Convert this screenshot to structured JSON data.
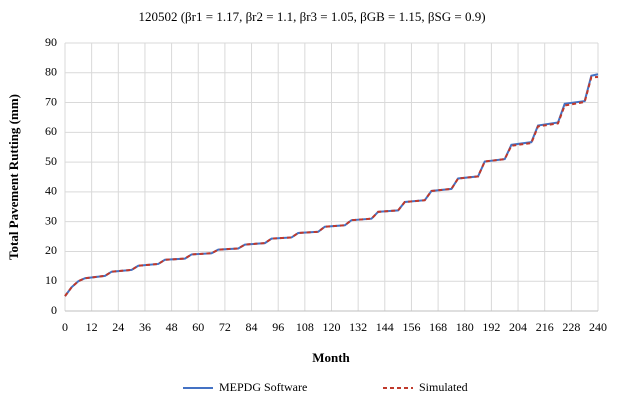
{
  "chart_data": {
    "type": "line",
    "title": "120502 (βr1 = 1.17, βr2 = 1.1, βr3 = 1.05, βGB = 1.15, βSG = 0.9)",
    "x_label": "Month",
    "y_label": "Total Pavement Rutting (mm)",
    "x": [
      0,
      3,
      6,
      9,
      18,
      21,
      30,
      33,
      42,
      45,
      54,
      57,
      66,
      69,
      78,
      81,
      90,
      93,
      102,
      105,
      114,
      117,
      126,
      129,
      138,
      141,
      150,
      153,
      162,
      165,
      174,
      177,
      186,
      189,
      198,
      201,
      210,
      213,
      222,
      225,
      234,
      237,
      240
    ],
    "series": [
      {
        "name": "MEPDG Software",
        "color": "#4472c4",
        "dash": false,
        "values": [
          5,
          8,
          10,
          11,
          11.8,
          13.2,
          13.8,
          15.2,
          15.8,
          17.2,
          17.6,
          19,
          19.4,
          20.6,
          21,
          22.3,
          22.8,
          24.3,
          24.7,
          26.2,
          26.6,
          28.3,
          28.8,
          30.5,
          31,
          33.3,
          33.8,
          36.6,
          37.2,
          40.3,
          41,
          44.5,
          45.2,
          50.2,
          51,
          55.8,
          56.7,
          62.3,
          63.3,
          69.6,
          70.5,
          79,
          79.5
        ]
      },
      {
        "name": "Simulated",
        "color": "#c0392b",
        "dash": true,
        "values": [
          5,
          8,
          10,
          11,
          11.8,
          13.2,
          13.8,
          15.2,
          15.8,
          17.2,
          17.6,
          19,
          19.4,
          20.6,
          21,
          22.3,
          22.8,
          24.3,
          24.7,
          26.2,
          26.6,
          28.3,
          28.8,
          30.5,
          31,
          33.3,
          33.8,
          36.6,
          37.2,
          40.3,
          41,
          44.5,
          45.2,
          50.2,
          51,
          55.5,
          56.4,
          62,
          63,
          69,
          70.2,
          78.5,
          78.6
        ]
      }
    ],
    "xlim": [
      0,
      240
    ],
    "xticks": [
      0,
      12,
      24,
      36,
      48,
      60,
      72,
      84,
      96,
      108,
      120,
      132,
      144,
      156,
      168,
      180,
      192,
      204,
      216,
      228,
      240
    ],
    "ylim": [
      0,
      90
    ],
    "yticks": [
      0,
      10,
      20,
      30,
      40,
      50,
      60,
      70,
      80,
      90
    ],
    "grid": true,
    "legend": "bottom"
  }
}
